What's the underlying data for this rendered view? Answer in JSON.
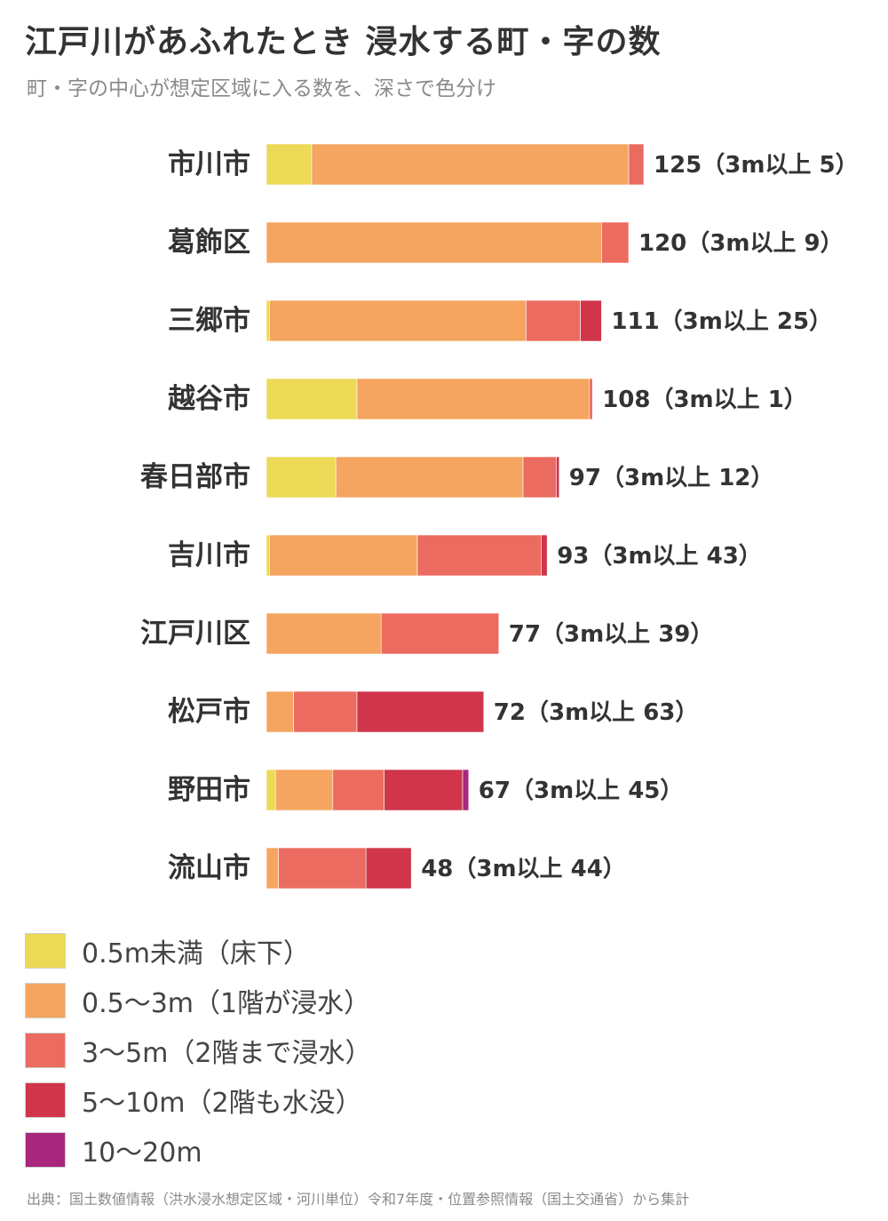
{
  "title": "江戸川があふれたとき 浸水する町・字の数",
  "subtitle": "町・字の中心が想定区域に入る数を、深さで色分け",
  "source": "出典：国土数値情報（洪水浸水想定区域・河川単位）令和7年度・位置参照情報（国土交通省）から集計",
  "chart_data": {
    "type": "bar",
    "orientation": "horizontal",
    "stacked": true,
    "categories": [
      "市川市",
      "葛飾区",
      "三郷市",
      "越谷市",
      "春日部市",
      "吉川市",
      "江戸川区",
      "松戸市",
      "野田市",
      "流山市"
    ],
    "value_labels": [
      "125（3m以上 5）",
      "120（3m以上 9）",
      "111（3m以上 25）",
      "108（3m以上 1）",
      "97（3m以上 12）",
      "93（3m以上 43）",
      "77（3m以上 39）",
      "72（3m以上 63）",
      "67（3m以上 45）",
      "48（3m以上 44）"
    ],
    "totals": [
      125,
      120,
      111,
      108,
      97,
      93,
      77,
      72,
      67,
      48
    ],
    "series": [
      {
        "name": "0.5m未満（床下）",
        "color": "#ecd955",
        "values": [
          15,
          0,
          1,
          30,
          23,
          1,
          0,
          0,
          3,
          0
        ]
      },
      {
        "name": "0.5～3m（1階が浸水）",
        "color": "#f5a55f",
        "values": [
          105,
          111,
          85,
          77,
          62,
          49,
          38,
          9,
          19,
          4
        ]
      },
      {
        "name": "3～5m（2階まで浸水）",
        "color": "#ec6b60",
        "values": [
          5,
          9,
          18,
          1,
          11,
          41,
          39,
          21,
          17,
          29
        ]
      },
      {
        "name": "5～10m（2階も水没）",
        "color": "#d0354a",
        "values": [
          0,
          0,
          7,
          0,
          1,
          2,
          0,
          42,
          26,
          15
        ]
      },
      {
        "name": "10～20m",
        "color": "#a8267c",
        "values": [
          0,
          0,
          0,
          0,
          0,
          0,
          0,
          0,
          2,
          0
        ]
      }
    ],
    "xlim": [
      0,
      125
    ],
    "grid": false,
    "legend_position": "bottom-left"
  }
}
